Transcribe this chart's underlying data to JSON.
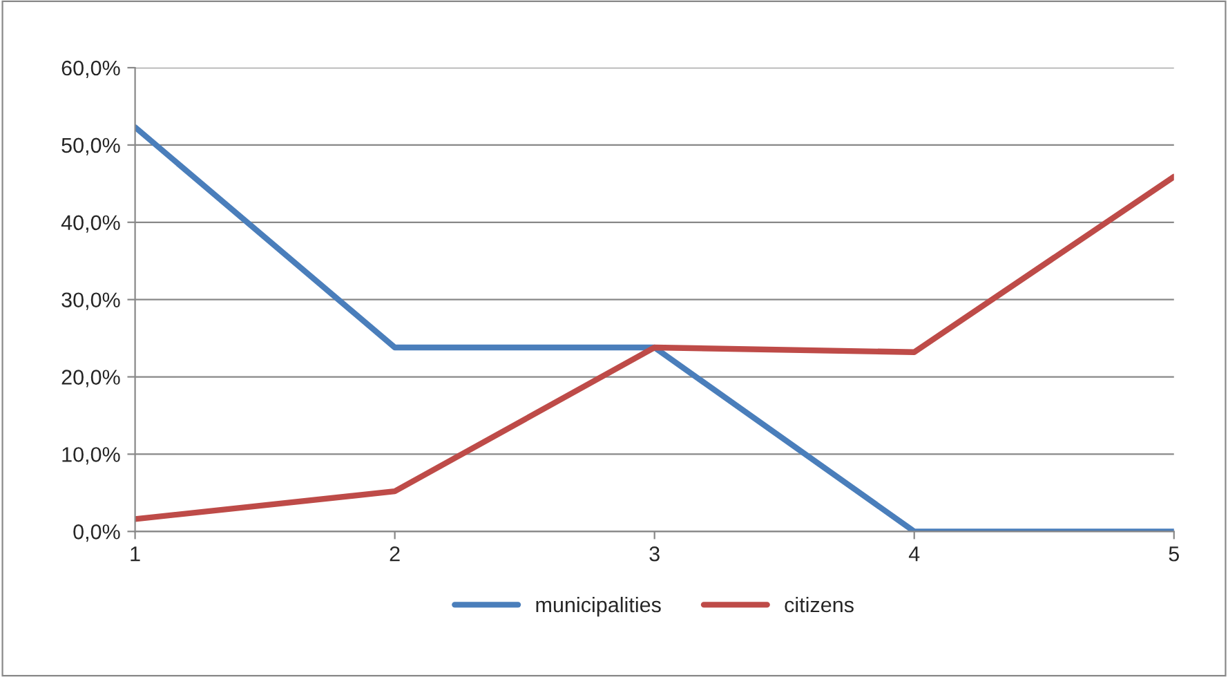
{
  "chart_data": {
    "type": "line",
    "categories": [
      "1",
      "2",
      "3",
      "4",
      "5"
    ],
    "series": [
      {
        "name": "municipalities",
        "color": "#4a7ebb",
        "values": [
          52.3,
          23.8,
          23.8,
          0,
          0
        ]
      },
      {
        "name": "citizens",
        "color": "#be4b48",
        "values": [
          1.6,
          5.2,
          23.8,
          23.2,
          45.9
        ]
      }
    ],
    "ylim": [
      0,
      60
    ],
    "yticks": [
      {
        "value": 0,
        "label": "0,0%"
      },
      {
        "value": 10,
        "label": "10,0%"
      },
      {
        "value": 20,
        "label": "20,0%"
      },
      {
        "value": 30,
        "label": "30,0%"
      },
      {
        "value": 40,
        "label": "40,0%"
      },
      {
        "value": 50,
        "label": "50,0%"
      },
      {
        "value": 60,
        "label": "60,0%"
      }
    ],
    "grid": "y",
    "legend": "bottom",
    "marker": "none",
    "line_style": "solid"
  }
}
